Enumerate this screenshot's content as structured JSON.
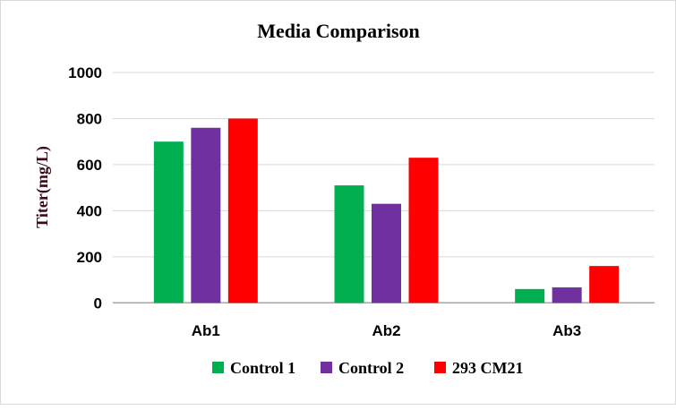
{
  "chart_data": {
    "type": "bar",
    "title": "Media Comparison",
    "xlabel": "",
    "ylabel": "Titer(mg/L)",
    "ylim": [
      0,
      1000
    ],
    "yticks": [
      0,
      200,
      400,
      600,
      800,
      1000
    ],
    "ytick_labels": [
      "0",
      "200",
      "400",
      "600",
      "800",
      "1000"
    ],
    "grid": true,
    "legend_position": "bottom",
    "categories": [
      "Ab1",
      "Ab2",
      "Ab3"
    ],
    "series": [
      {
        "name": "Control 1",
        "color": "#00b050",
        "values": [
          700,
          510,
          60
        ]
      },
      {
        "name": "Control 2",
        "color": "#7030a0",
        "values": [
          760,
          430,
          67
        ]
      },
      {
        "name": "293 CM21",
        "color": "#ff0000",
        "values": [
          800,
          630,
          160
        ]
      }
    ]
  }
}
